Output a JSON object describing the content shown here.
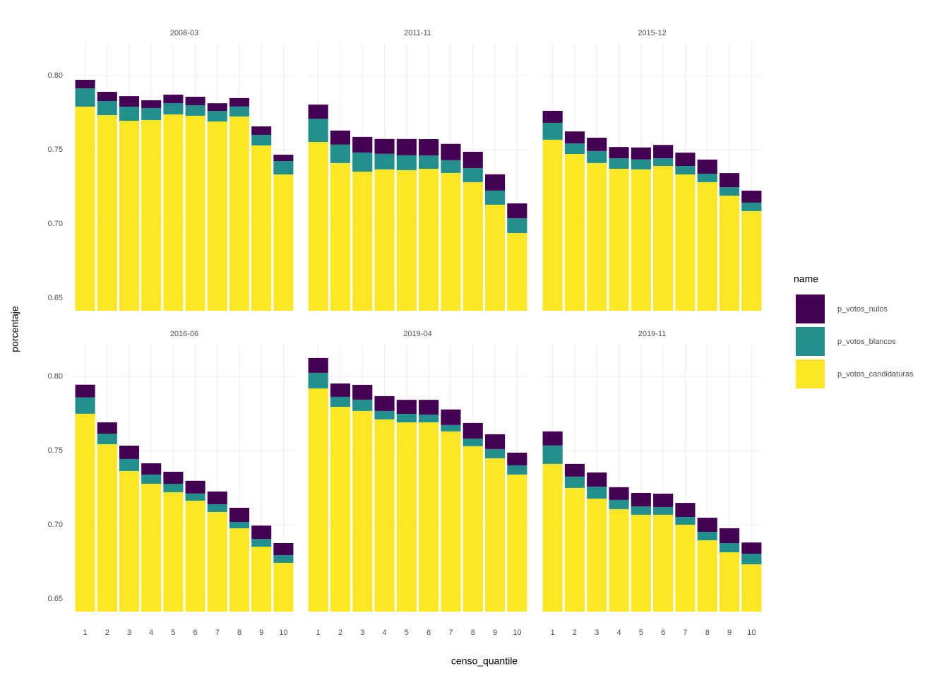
{
  "chart_data": {
    "type": "bar",
    "stacked": true,
    "x_label": "censo_quantile",
    "y_label": "porcentaje",
    "legend_title": "name",
    "grid": true,
    "categories": [
      1,
      2,
      3,
      4,
      5,
      6,
      7,
      8,
      9,
      10
    ],
    "ylim": [
      0.6414,
      0.8214
    ],
    "yticks": [
      0.65,
      {
        "value": 0.7,
        "label": "0.70"
      },
      0.75,
      {
        "value": 0.8,
        "label": "0.80"
      }
    ],
    "series": [
      {
        "name": "p_votos_nulos",
        "color": "#440154"
      },
      {
        "name": "p_votos_blancos",
        "color": "#21908c"
      },
      {
        "name": "p_votos_candidaturas",
        "color": "#fde725"
      }
    ],
    "facets": [
      {
        "title": "2008-03",
        "values": [
          [
            0.0057,
            0.0062,
            0.0071,
            0.0052,
            0.0057,
            0.0057,
            0.0052,
            0.0057,
            0.0057,
            0.0043
          ],
          [
            0.0124,
            0.0095,
            0.0095,
            0.0081,
            0.0076,
            0.0071,
            0.0071,
            0.0067,
            0.0071,
            0.009
          ],
          [
            0.779,
            0.7733,
            0.7695,
            0.77,
            0.7738,
            0.7729,
            0.769,
            0.7724,
            0.7529,
            0.7333
          ]
        ]
      },
      {
        "title": "2011-11",
        "values": [
          [
            0.0095,
            0.0095,
            0.0105,
            0.01,
            0.011,
            0.011,
            0.011,
            0.011,
            0.011,
            0.01
          ],
          [
            0.0157,
            0.0124,
            0.0129,
            0.0105,
            0.01,
            0.009,
            0.0086,
            0.0095,
            0.0095,
            0.01
          ],
          [
            0.7552,
            0.741,
            0.7352,
            0.7367,
            0.7362,
            0.7371,
            0.7343,
            0.7281,
            0.7129,
            0.6938
          ]
        ]
      },
      {
        "title": "2015-12",
        "values": [
          [
            0.0081,
            0.0081,
            0.009,
            0.0076,
            0.0081,
            0.009,
            0.009,
            0.0095,
            0.0095,
            0.0081
          ],
          [
            0.0114,
            0.0071,
            0.0081,
            0.0071,
            0.0067,
            0.0052,
            0.0057,
            0.0057,
            0.0057,
            0.0057
          ],
          [
            0.7567,
            0.7471,
            0.741,
            0.7371,
            0.7367,
            0.739,
            0.7333,
            0.7281,
            0.719,
            0.7086
          ]
        ]
      },
      {
        "title": "2016-06",
        "values": [
          [
            0.0086,
            0.0076,
            0.009,
            0.0076,
            0.0081,
            0.0086,
            0.0086,
            0.0095,
            0.009,
            0.0081
          ],
          [
            0.011,
            0.0071,
            0.0081,
            0.0062,
            0.0057,
            0.0048,
            0.0052,
            0.0043,
            0.0052,
            0.0052
          ],
          [
            0.7748,
            0.7543,
            0.7362,
            0.7276,
            0.7219,
            0.7162,
            0.7086,
            0.6976,
            0.6852,
            0.6743
          ]
        ]
      },
      {
        "title": "2019-04",
        "values": [
          [
            0.01,
            0.009,
            0.01,
            0.01,
            0.0095,
            0.01,
            0.0105,
            0.0105,
            0.01,
            0.0086
          ],
          [
            0.0105,
            0.0067,
            0.0076,
            0.0057,
            0.0057,
            0.0052,
            0.0043,
            0.0052,
            0.0062,
            0.0062
          ],
          [
            0.7919,
            0.7795,
            0.7767,
            0.771,
            0.769,
            0.769,
            0.7629,
            0.7529,
            0.7448,
            0.7338
          ]
        ]
      },
      {
        "title": "2019-11",
        "values": [
          [
            0.0095,
            0.0086,
            0.0095,
            0.0086,
            0.009,
            0.009,
            0.0095,
            0.0095,
            0.01,
            0.0076
          ],
          [
            0.0124,
            0.0076,
            0.0081,
            0.0062,
            0.0057,
            0.0052,
            0.0052,
            0.0057,
            0.0062,
            0.0071
          ],
          [
            0.741,
            0.7248,
            0.7176,
            0.7105,
            0.7067,
            0.7067,
            0.7,
            0.6895,
            0.6814,
            0.6733
          ]
        ]
      }
    ]
  }
}
